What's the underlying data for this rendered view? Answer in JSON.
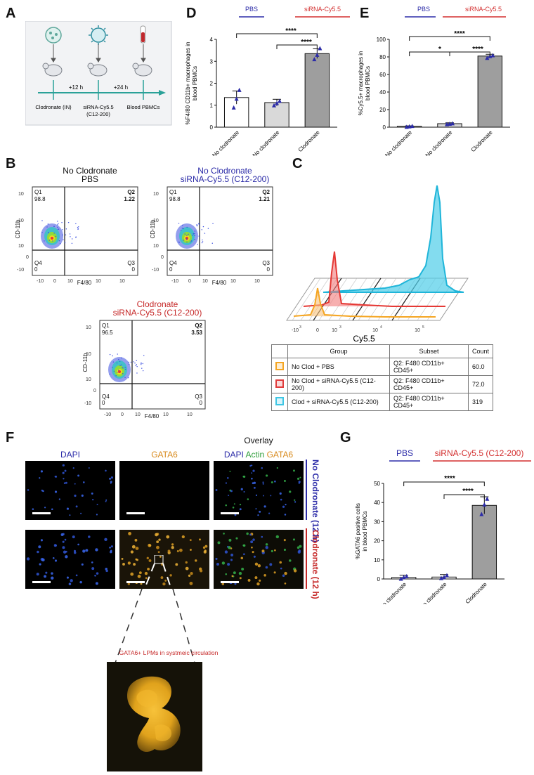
{
  "panel_labels": {
    "A": "A",
    "B": "B",
    "C": "C",
    "D": "D",
    "E": "E",
    "F": "F",
    "G": "G"
  },
  "panelA": {
    "steps": [
      "Clodronate (IN)",
      "siRNA-Cy5.5",
      "Blood PBMCs"
    ],
    "step2_sub": "(C12-200)",
    "times": [
      "+12 h",
      "+24 h"
    ]
  },
  "panelD": {
    "legend_pbs": "PBS",
    "legend_sirna": "siRNA-Cy5.5",
    "sig": [
      "****",
      "****"
    ]
  },
  "panelE": {
    "legend_pbs": "PBS",
    "legend_sirna": "siRNA-Cy5.5",
    "sig": [
      "****",
      "*",
      "****"
    ]
  },
  "panelG": {
    "legend_pbs": "PBS",
    "legend_sirna": "siRNA-Cy5.5 (C12-200)",
    "sig": [
      "****",
      "****"
    ]
  },
  "chart_data": [
    {
      "id": "D",
      "type": "bar",
      "categories": [
        "No clodronate",
        "No clodronate",
        "Clodronate"
      ],
      "values": [
        1.35,
        1.12,
        3.35
      ],
      "errors": [
        0.3,
        0.15,
        0.22
      ],
      "points": [
        [
          0.9,
          1.3,
          1.7
        ],
        [
          1.0,
          1.1,
          1.2
        ],
        [
          3.1,
          3.3,
          3.6
        ]
      ],
      "bar_colors": [
        "#ffffff",
        "#d9d9d9",
        "#9e9e9e"
      ],
      "ylabel": "%F4/80 CD11b+ macrophages in blood PBMCs",
      "ylim": [
        0,
        4
      ],
      "yticks": [
        "0",
        "1",
        "2",
        "3",
        "4"
      ]
    },
    {
      "id": "E",
      "type": "bar",
      "categories": [
        "No clodronate",
        "No clodronate",
        "Clodronate"
      ],
      "values": [
        1,
        4,
        81
      ],
      "errors": [
        0.5,
        1,
        2
      ],
      "points": [
        [
          0.5,
          1,
          1.5
        ],
        [
          3.5,
          4,
          4.5
        ],
        [
          79,
          81,
          82
        ]
      ],
      "bar_colors": [
        "#ffffff",
        "#d9d9d9",
        "#9e9e9e"
      ],
      "ylabel": "%Cy5.5+ macrophages in blood PBMCs",
      "ylim": [
        0,
        100
      ],
      "yticks": [
        "0",
        "20",
        "40",
        "60",
        "80",
        "100"
      ]
    },
    {
      "id": "G",
      "type": "bar",
      "categories": [
        "No clodronate",
        "No clodronate",
        "Clodronate"
      ],
      "values": [
        0.8,
        1.0,
        38.5
      ],
      "errors": [
        1.2,
        1.3,
        4.5
      ],
      "points": [
        [
          0.2,
          1.0,
          1.5
        ],
        [
          0.5,
          1.0,
          2.0
        ],
        [
          34,
          39,
          42
        ]
      ],
      "bar_colors": [
        "#ffffff",
        "#ffffff",
        "#9e9e9e"
      ],
      "ylabel": "%GATA6 positive cells in blood PBMCs",
      "ylim": [
        0,
        50
      ],
      "yticks": [
        "0",
        "10",
        "20",
        "30",
        "40",
        "50"
      ]
    }
  ],
  "panelB": {
    "plots": [
      {
        "title1": "No Clodronate",
        "title2": "PBS",
        "q1": "98.8",
        "q2": "1.22",
        "q3": "0",
        "q4": "0"
      },
      {
        "title1": "No Clodronate",
        "title2": "siRNA-Cy5.5 (C12-200)",
        "q1": "98.8",
        "q2": "1.21",
        "q3": "0",
        "q4": "0"
      },
      {
        "title1": "Clodronate",
        "title2": "siRNA-Cy5.5 (C12-200)",
        "q1": "96.5",
        "q2": "3.53",
        "q3": "0",
        "q4": "0"
      }
    ],
    "quad_labels": {
      "q1": "Q1",
      "q2": "Q2",
      "q3": "Q3",
      "q4": "Q4"
    },
    "ylabel": "CD-11b",
    "xlabel": "F4/80"
  },
  "panelC": {
    "xlabel": "Cy5.5",
    "headers": [
      "Group",
      "Subset",
      "Count"
    ],
    "rows": [
      {
        "color": "#f5a623",
        "group": "No Clod + PBS",
        "subset": "Q2: F480 CD11b+ CD45+",
        "count": "60.0"
      },
      {
        "color": "#e03c3c",
        "group": "No Clod + siRNA-Cy5.5 (C12-200)",
        "subset": "Q2: F480 CD11b+ CD45+",
        "count": "72.0"
      },
      {
        "color": "#3fc6e4",
        "group": "Clod + siRNA-Cy5.5 (C12-200)",
        "subset": "Q2: F480 CD11b+ CD45+",
        "count": "319"
      }
    ]
  },
  "panelF": {
    "col_dapi": "DAPI",
    "col_gata6": "GATA6",
    "overlay": "Overlay",
    "ov_dapi": "DAPI",
    "ov_actin": "Actin",
    "ov_gata6": "GATA6",
    "row1": "No Clodronate (12 h)",
    "row2": "Clodronate (12 h)",
    "inset_caption": "GATA6+ LPMs in systmeic circulation"
  }
}
